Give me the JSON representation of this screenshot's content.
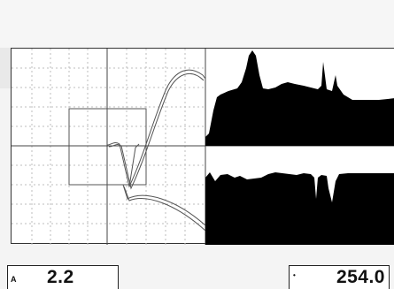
{
  "display": {
    "background": "#ffffff",
    "grid_color": "#bdbdbd",
    "trace_color": "#555555",
    "fill_color": "#000000"
  },
  "readouts": {
    "left": {
      "label": "A",
      "value": "2.2"
    },
    "right": {
      "label": "•",
      "value": "254.0"
    }
  }
}
